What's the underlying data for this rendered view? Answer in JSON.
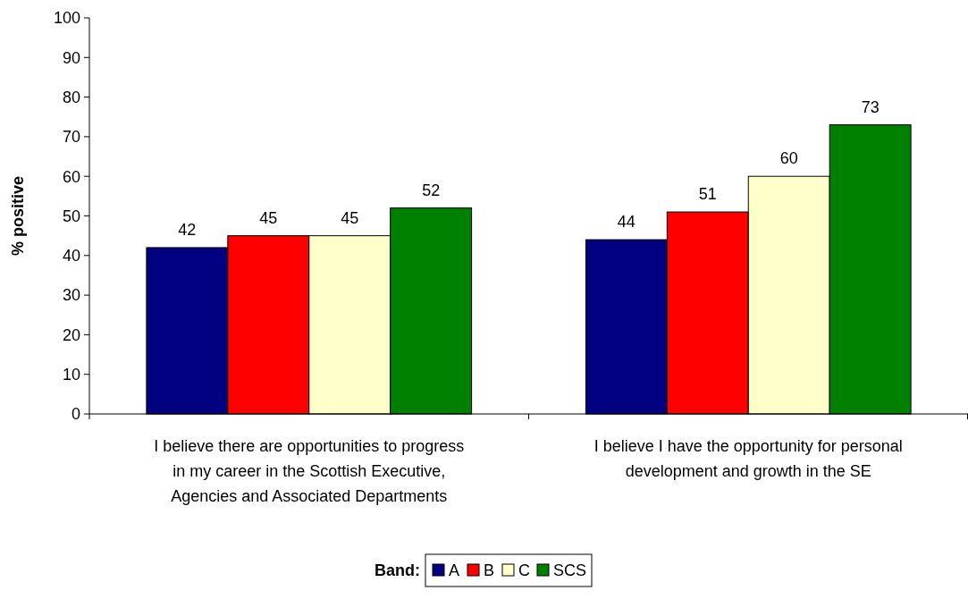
{
  "chart_data": {
    "type": "bar",
    "ylabel": "% positive",
    "legend_title": "Band:",
    "categories": [
      "I believe there are opportunities to progress in my career in the Scottish Executive, Agencies and Associated Departments",
      "I believe I have the opportunity for personal development and growth in the SE"
    ],
    "series": [
      {
        "name": "A",
        "color": "#000080",
        "values": [
          42,
          44
        ]
      },
      {
        "name": "B",
        "color": "#ff0000",
        "values": [
          45,
          51
        ]
      },
      {
        "name": "C",
        "color": "#ffffcc",
        "values": [
          45,
          60
        ]
      },
      {
        "name": "SCS",
        "color": "#008000",
        "values": [
          52,
          73
        ]
      }
    ],
    "ylim": [
      0,
      100
    ],
    "yticks": [
      0,
      10,
      20,
      30,
      40,
      50,
      60,
      70,
      80,
      90,
      100
    ],
    "data_labels": true,
    "legend": "bottom",
    "grid": false
  }
}
